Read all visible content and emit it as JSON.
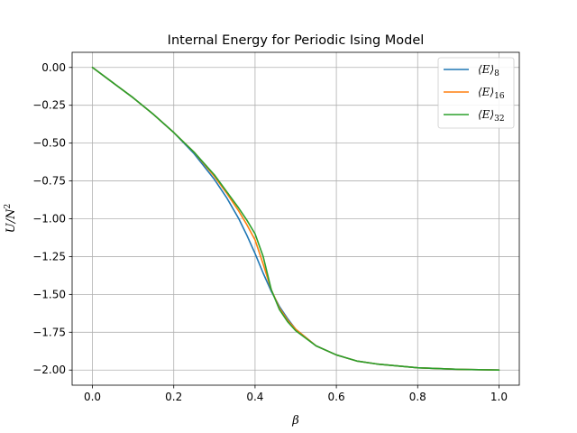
{
  "chart_data": {
    "type": "line",
    "title": "Internal Energy for Periodic Ising Model",
    "xlabel": "β",
    "ylabel": {
      "base": "U/N",
      "sup": "2"
    },
    "xlim": [
      -0.05,
      1.05
    ],
    "ylim": [
      -2.1,
      0.1
    ],
    "xticks": [
      0.0,
      0.2,
      0.4,
      0.6,
      0.8,
      1.0
    ],
    "xtick_labels": [
      "0.0",
      "0.2",
      "0.4",
      "0.6",
      "0.8",
      "1.0"
    ],
    "yticks": [
      0.0,
      -0.25,
      -0.5,
      -0.75,
      -1.0,
      -1.25,
      -1.5,
      -1.75,
      -2.0
    ],
    "ytick_labels": [
      "0.00",
      "−0.25",
      "−0.50",
      "−0.75",
      "−1.00",
      "−1.25",
      "−1.50",
      "−1.75",
      "−2.00"
    ],
    "grid": true,
    "legend_position": "top-right",
    "series": [
      {
        "name": "⟨E⟩8",
        "legend": {
          "base": "⟨E⟩",
          "sub": "8"
        },
        "color": "#1f77b4",
        "x": [
          0.0,
          0.05,
          0.1,
          0.15,
          0.2,
          0.25,
          0.3,
          0.33,
          0.36,
          0.38,
          0.4,
          0.42,
          0.44,
          0.46,
          0.48,
          0.5,
          0.55,
          0.6,
          0.65,
          0.7,
          0.8,
          0.9,
          1.0
        ],
        "y": [
          0.0,
          -0.1,
          -0.2,
          -0.31,
          -0.43,
          -0.57,
          -0.74,
          -0.86,
          -1.0,
          -1.11,
          -1.23,
          -1.36,
          -1.48,
          -1.58,
          -1.66,
          -1.73,
          -1.84,
          -1.9,
          -1.94,
          -1.96,
          -1.985,
          -1.995,
          -2.0
        ]
      },
      {
        "name": "⟨E⟩16",
        "legend": {
          "base": "⟨E⟩",
          "sub": "16"
        },
        "color": "#ff7f0e",
        "x": [
          0.0,
          0.05,
          0.1,
          0.15,
          0.2,
          0.25,
          0.3,
          0.33,
          0.36,
          0.38,
          0.4,
          0.42,
          0.44,
          0.46,
          0.48,
          0.5,
          0.55,
          0.6,
          0.65,
          0.7,
          0.8,
          0.9,
          1.0
        ],
        "y": [
          0.0,
          -0.1,
          -0.2,
          -0.31,
          -0.43,
          -0.56,
          -0.72,
          -0.83,
          -0.95,
          -1.04,
          -1.14,
          -1.3,
          -1.47,
          -1.59,
          -1.67,
          -1.73,
          -1.84,
          -1.9,
          -1.94,
          -1.96,
          -1.985,
          -1.995,
          -2.0
        ]
      },
      {
        "name": "⟨E⟩32",
        "legend": {
          "base": "⟨E⟩",
          "sub": "32"
        },
        "color": "#2ca02c",
        "x": [
          0.0,
          0.05,
          0.1,
          0.15,
          0.2,
          0.25,
          0.3,
          0.33,
          0.36,
          0.38,
          0.4,
          0.42,
          0.44,
          0.46,
          0.48,
          0.5,
          0.55,
          0.6,
          0.65,
          0.7,
          0.8,
          0.9,
          1.0
        ],
        "y": [
          0.0,
          -0.1,
          -0.2,
          -0.31,
          -0.43,
          -0.56,
          -0.71,
          -0.82,
          -0.93,
          -1.01,
          -1.1,
          -1.25,
          -1.47,
          -1.6,
          -1.68,
          -1.74,
          -1.84,
          -1.9,
          -1.94,
          -1.96,
          -1.985,
          -1.995,
          -2.0
        ]
      }
    ]
  }
}
